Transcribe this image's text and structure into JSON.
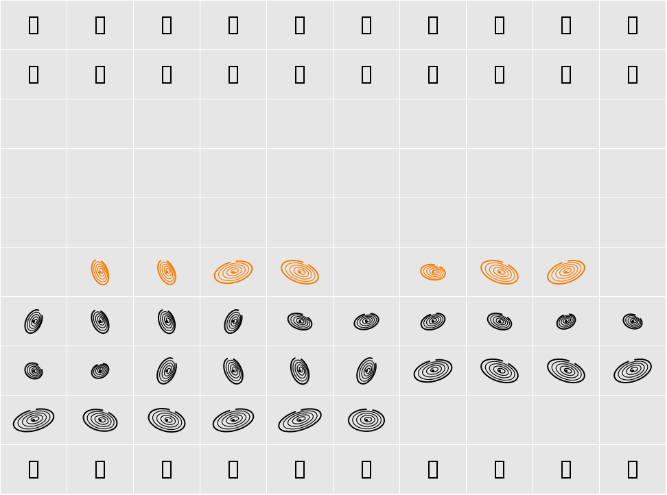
{
  "grid": {
    "columns": 10,
    "background": "#e6e6e6",
    "line_color": "#ffffff",
    "rows": [
      {
        "type": "tofu",
        "cells": [
          "tofu",
          "tofu",
          "tofu",
          "tofu",
          "tofu",
          "tofu",
          "tofu",
          "tofu",
          "tofu",
          "tofu"
        ]
      },
      {
        "type": "tofu",
        "cells": [
          "tofu",
          "tofu",
          "tofu",
          "tofu",
          "tofu",
          "tofu",
          "tofu",
          "tofu",
          "tofu",
          "tofu"
        ]
      },
      {
        "type": "empty",
        "cells": [
          "empty",
          "empty",
          "empty",
          "empty",
          "empty",
          "empty",
          "empty",
          "empty",
          "empty",
          "empty"
        ]
      },
      {
        "type": "empty",
        "cells": [
          "empty",
          "empty",
          "empty",
          "empty",
          "empty",
          "empty",
          "empty",
          "empty",
          "empty",
          "empty"
        ]
      },
      {
        "type": "empty",
        "cells": [
          "empty",
          "empty",
          "empty",
          "empty",
          "empty",
          "empty",
          "empty",
          "empty",
          "empty",
          "empty"
        ]
      },
      {
        "type": "glyph",
        "cells": [
          "empty",
          "spiral-orange",
          "spiral-orange",
          "spiral-orange",
          "spiral-orange",
          "empty",
          "spiral-orange",
          "spiral-orange",
          "spiral-orange",
          "empty"
        ]
      },
      {
        "type": "glyph",
        "cells": [
          "spiral",
          "spiral",
          "spiral",
          "spiral",
          "spiral",
          "spiral",
          "spiral",
          "spiral",
          "spiral",
          "spiral"
        ]
      },
      {
        "type": "glyph",
        "cells": [
          "spiral",
          "spiral",
          "spiral",
          "spiral",
          "spiral",
          "spiral",
          "spiral",
          "spiral",
          "spiral",
          "spiral"
        ]
      },
      {
        "type": "glyph",
        "cells": [
          "spiral",
          "spiral",
          "spiral",
          "spiral",
          "spiral",
          "spiral",
          "empty",
          "empty",
          "empty",
          "empty"
        ]
      },
      {
        "type": "tofu",
        "cells": [
          "tofu",
          "tofu",
          "tofu",
          "tofu",
          "tofu",
          "tofu",
          "tofu",
          "tofu",
          "tofu",
          "tofu"
        ]
      }
    ]
  },
  "colors": {
    "accent": "#f57c00",
    "ink": "#000000"
  }
}
